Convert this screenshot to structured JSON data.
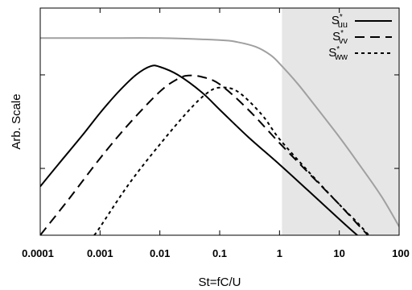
{
  "chart_data": {
    "type": "line",
    "title": "",
    "xlabel": "St=fC/U",
    "ylabel": "Arb. Scale",
    "xscale": "log",
    "xlim": [
      0.0001,
      100
    ],
    "xticks": [
      0.0001,
      0.001,
      0.01,
      0.1,
      1,
      10,
      100
    ],
    "xtick_labels": [
      "0.0001",
      "0.001",
      "0.01",
      "0.1",
      "1",
      "10",
      "100"
    ],
    "yscale": "log",
    "y_axis_units": "arbitrary (log decades)",
    "ylim_decades": [
      0,
      3.4
    ],
    "yticks_decades": [
      1,
      2.4
    ],
    "grid": false,
    "legend_position": "top-right",
    "shaded_region": {
      "x_from": 1.1,
      "x_to": 100,
      "color": "#e6e6e6"
    },
    "series": [
      {
        "name": "S*uu",
        "base": "S",
        "sup": "*",
        "sub": "uu",
        "style": "solid",
        "color": "#000000",
        "x": [
          0.0001,
          0.0002,
          0.0005,
          0.001,
          0.002,
          0.004,
          0.007,
          0.01,
          0.02,
          0.05,
          0.1,
          0.3,
          1,
          3,
          10,
          20,
          30
        ],
        "y": [
          0.73,
          1.06,
          1.49,
          1.83,
          2.14,
          2.4,
          2.53,
          2.52,
          2.4,
          2.14,
          1.88,
          1.47,
          1.06,
          0.67,
          0.24,
          0.0,
          -0.13
        ]
      },
      {
        "name": "S*vv",
        "base": "S",
        "sup": "*",
        "sub": "vv",
        "style": "dashed",
        "color": "#000000",
        "x": [
          0.0001,
          0.0003,
          0.001,
          0.003,
          0.01,
          0.02,
          0.03,
          0.05,
          0.1,
          0.3,
          1,
          3,
          10,
          20,
          30
        ],
        "y": [
          0.0,
          0.54,
          1.15,
          1.66,
          2.15,
          2.34,
          2.39,
          2.37,
          2.26,
          1.88,
          1.38,
          0.94,
          0.46,
          0.17,
          0.0
        ]
      },
      {
        "name": "S*ww",
        "base": "S",
        "sup": "*",
        "sub": "ww",
        "style": "dotted",
        "color": "#000000",
        "x": [
          0.0008,
          0.001,
          0.003,
          0.01,
          0.03,
          0.06,
          0.1,
          0.2,
          0.5,
          1,
          3,
          10,
          20,
          40
        ],
        "y": [
          0.0,
          0.12,
          0.76,
          1.36,
          1.86,
          2.12,
          2.21,
          2.15,
          1.81,
          1.44,
          0.96,
          0.46,
          0.19,
          -0.11
        ]
      },
      {
        "name": "",
        "style": "solid",
        "color": "#a0a0a0",
        "x": [
          0.0001,
          0.001,
          0.01,
          0.1,
          0.2,
          0.4,
          0.7,
          1,
          2,
          4,
          10,
          20,
          50,
          100
        ],
        "y": [
          2.95,
          2.95,
          2.95,
          2.92,
          2.89,
          2.82,
          2.7,
          2.57,
          2.27,
          1.93,
          1.47,
          1.1,
          0.59,
          0.13
        ]
      }
    ]
  }
}
